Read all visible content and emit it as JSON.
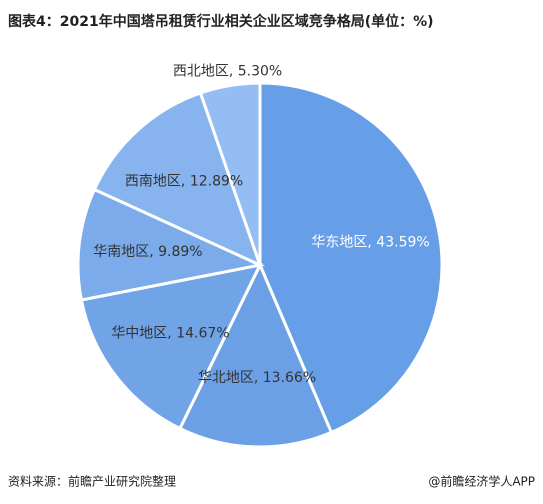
{
  "chart_data": {
    "type": "pie",
    "title": "图表4：2021年中国塔吊租赁行业相关企业区域竞争格局(单位：%)",
    "values": [
      43.59,
      13.66,
      14.67,
      9.89,
      12.89,
      5.3
    ],
    "value_labels": [
      "华东地区, 43.59%",
      "华北地区, 13.66%",
      "华中地区, 14.67%",
      "华南地区, 9.89%",
      "西南地区, 12.89%",
      "西北地区, 5.30%"
    ],
    "colors": [
      "#669fe8",
      "#6ba0e6",
      "#71a4e7",
      "#7babea",
      "#87b4ee",
      "#93bdf3"
    ],
    "source": "资料来源：前瞻产业研究院整理",
    "credit": "@前瞻经济学人APP"
  }
}
